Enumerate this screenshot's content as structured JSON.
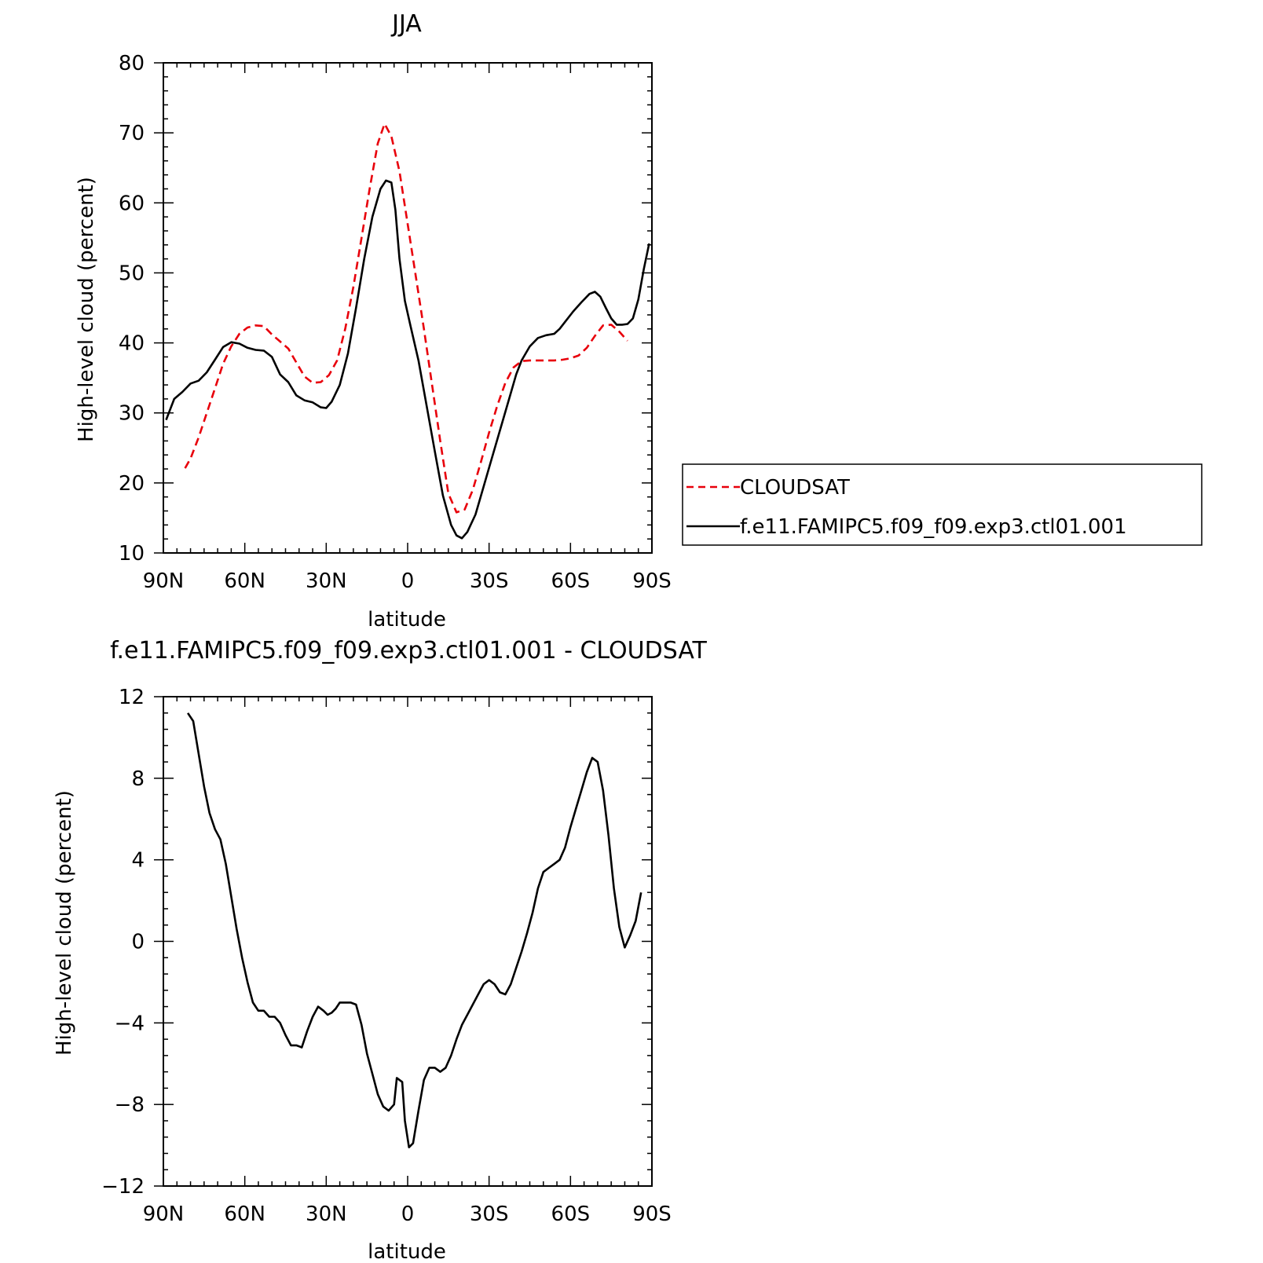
{
  "chart_data": [
    {
      "type": "line",
      "title": "JJA",
      "xlabel": "latitude",
      "ylabel": "High-level cloud (percent)",
      "xlim": [
        90,
        -90
      ],
      "ylim": [
        10,
        80
      ],
      "x_ticks": [
        90,
        60,
        30,
        0,
        -30,
        -60,
        -90
      ],
      "x_tick_labels": [
        "90N",
        "60N",
        "30N",
        "0",
        "30S",
        "60S",
        "90S"
      ],
      "y_ticks": [
        10,
        20,
        30,
        40,
        50,
        60,
        70,
        80
      ],
      "y_tick_labels": [
        "10",
        "20",
        "30",
        "40",
        "50",
        "60",
        "70",
        "80"
      ],
      "legend_position": "right",
      "series": [
        {
          "name": "CLOUDSAT",
          "color": "#e8000b",
          "dash": "dashed",
          "points": [
            [
              82,
              22.1
            ],
            [
              80,
              23.5
            ],
            [
              77,
              26.5
            ],
            [
              74,
              30
            ],
            [
              71,
              33.5
            ],
            [
              68,
              37
            ],
            [
              65,
              39.5
            ],
            [
              62,
              41.3
            ],
            [
              59,
              42.2
            ],
            [
              56,
              42.5
            ],
            [
              53,
              42.4
            ],
            [
              50,
              41.2
            ],
            [
              47,
              40.2
            ],
            [
              44,
              39.2
            ],
            [
              41,
              37.2
            ],
            [
              38,
              35.2
            ],
            [
              35,
              34.3
            ],
            [
              32,
              34.4
            ],
            [
              29,
              35.4
            ],
            [
              26,
              37.5
            ],
            [
              23,
              42
            ],
            [
              20,
              48
            ],
            [
              17,
              55
            ],
            [
              14,
              62
            ],
            [
              11,
              68.5
            ],
            [
              8.5,
              71.3
            ],
            [
              6,
              69.5
            ],
            [
              3,
              64.5
            ],
            [
              0,
              57
            ],
            [
              -3,
              49.5
            ],
            [
              -6,
              42
            ],
            [
              -9,
              34
            ],
            [
              -12,
              26
            ],
            [
              -15,
              18.5
            ],
            [
              -18,
              15.8
            ],
            [
              -21,
              16.2
            ],
            [
              -24,
              19
            ],
            [
              -27,
              23
            ],
            [
              -30,
              27.2
            ],
            [
              -33,
              31
            ],
            [
              -36,
              34.3
            ],
            [
              -39,
              36.5
            ],
            [
              -42,
              37.4
            ],
            [
              -45,
              37.5
            ],
            [
              -48,
              37.5
            ],
            [
              -51,
              37.5
            ],
            [
              -54,
              37.5
            ],
            [
              -57,
              37.6
            ],
            [
              -60,
              37.8
            ],
            [
              -63,
              38.2
            ],
            [
              -66,
              39.3
            ],
            [
              -69,
              41
            ],
            [
              -72,
              42.5
            ],
            [
              -75,
              42.6
            ],
            [
              -78,
              41.6
            ],
            [
              -81,
              40.3
            ]
          ]
        },
        {
          "name": "f.e11.FAMIPC5.f09_f09.exp3.ctl01.001",
          "color": "#000000",
          "dash": "solid",
          "points": [
            [
              89,
              29
            ],
            [
              86,
              32
            ],
            [
              83,
              33
            ],
            [
              80,
              34.2
            ],
            [
              77,
              34.6
            ],
            [
              74,
              35.8
            ],
            [
              71,
              37.6
            ],
            [
              68,
              39.4
            ],
            [
              65,
              40.1
            ],
            [
              62,
              39.9
            ],
            [
              59,
              39.3
            ],
            [
              56,
              39
            ],
            [
              53,
              38.9
            ],
            [
              50,
              38
            ],
            [
              47,
              35.5
            ],
            [
              44,
              34.4
            ],
            [
              41,
              32.5
            ],
            [
              38,
              31.8
            ],
            [
              35,
              31.5
            ],
            [
              32,
              30.8
            ],
            [
              30,
              30.7
            ],
            [
              28,
              31.6
            ],
            [
              25,
              34
            ],
            [
              22,
              38.5
            ],
            [
              19,
              45
            ],
            [
              16,
              52
            ],
            [
              13,
              58
            ],
            [
              10,
              62
            ],
            [
              8,
              63.2
            ],
            [
              6,
              62.9
            ],
            [
              4.5,
              59
            ],
            [
              3,
              52
            ],
            [
              1,
              46
            ],
            [
              -1,
              42.5
            ],
            [
              -4,
              37.5
            ],
            [
              -7,
              31
            ],
            [
              -10,
              24.5
            ],
            [
              -13,
              18.2
            ],
            [
              -16,
              14
            ],
            [
              -18,
              12.5
            ],
            [
              -20,
              12.1
            ],
            [
              -22,
              13
            ],
            [
              -25,
              15.5
            ],
            [
              -28,
              19.5
            ],
            [
              -31,
              23.5
            ],
            [
              -34,
              27.5
            ],
            [
              -37,
              31.5
            ],
            [
              -40,
              35.5
            ],
            [
              -42,
              37.5
            ],
            [
              -45,
              39.5
            ],
            [
              -48,
              40.7
            ],
            [
              -51,
              41.1
            ],
            [
              -54,
              41.3
            ],
            [
              -56,
              42
            ],
            [
              -58,
              43
            ],
            [
              -61,
              44.5
            ],
            [
              -64,
              45.8
            ],
            [
              -67,
              47
            ],
            [
              -69,
              47.3
            ],
            [
              -71,
              46.6
            ],
            [
              -73,
              45
            ],
            [
              -75,
              43.5
            ],
            [
              -77,
              42.6
            ],
            [
              -79,
              42.6
            ],
            [
              -81,
              42.7
            ],
            [
              -83,
              43.5
            ],
            [
              -85,
              46.2
            ],
            [
              -87,
              50.5
            ],
            [
              -89,
              54.2
            ]
          ]
        }
      ]
    },
    {
      "type": "line",
      "title": "f.e11.FAMIPC5.f09_f09.exp3.ctl01.001 - CLOUDSAT",
      "xlabel": "latitude",
      "ylabel": "High-level cloud (percent)",
      "xlim": [
        90,
        -90
      ],
      "ylim": [
        -12,
        12
      ],
      "x_ticks": [
        90,
        60,
        30,
        0,
        -30,
        -60,
        -90
      ],
      "x_tick_labels": [
        "90N",
        "60N",
        "30N",
        "0",
        "30S",
        "60S",
        "90S"
      ],
      "y_ticks": [
        -12,
        -8,
        -4,
        0,
        4,
        8,
        12
      ],
      "y_tick_labels": [
        "−12",
        "−8",
        "−4",
        "0",
        "4",
        "8",
        "12"
      ],
      "series": [
        {
          "color": "#000000",
          "dash": "solid",
          "points": [
            [
              81,
              11.2
            ],
            [
              79,
              10.8
            ],
            [
              77,
              9.2
            ],
            [
              75,
              7.6
            ],
            [
              73,
              6.3
            ],
            [
              71,
              5.5
            ],
            [
              69,
              5
            ],
            [
              67,
              3.8
            ],
            [
              65,
              2.2
            ],
            [
              63,
              0.6
            ],
            [
              61,
              -0.8
            ],
            [
              59,
              -2
            ],
            [
              57,
              -3
            ],
            [
              55,
              -3.4
            ],
            [
              53,
              -3.4
            ],
            [
              51,
              -3.7
            ],
            [
              49,
              -3.7
            ],
            [
              47,
              -4
            ],
            [
              45,
              -4.6
            ],
            [
              43,
              -5.1
            ],
            [
              41,
              -5.1
            ],
            [
              39,
              -5.2
            ],
            [
              37,
              -4.4
            ],
            [
              35,
              -3.7
            ],
            [
              33,
              -3.2
            ],
            [
              31,
              -3.4
            ],
            [
              29.5,
              -3.6
            ],
            [
              28,
              -3.5
            ],
            [
              26.5,
              -3.3
            ],
            [
              25,
              -3
            ],
            [
              23,
              -3
            ],
            [
              21,
              -3
            ],
            [
              19,
              -3.1
            ],
            [
              17,
              -4.1
            ],
            [
              15,
              -5.5
            ],
            [
              13,
              -6.5
            ],
            [
              11,
              -7.5
            ],
            [
              9,
              -8.1
            ],
            [
              7,
              -8.3
            ],
            [
              5,
              -8
            ],
            [
              4,
              -6.7
            ],
            [
              2,
              -6.9
            ],
            [
              1,
              -8.8
            ],
            [
              -0.5,
              -10.1
            ],
            [
              -2,
              -9.9
            ],
            [
              -4,
              -8.3
            ],
            [
              -6,
              -6.8
            ],
            [
              -8,
              -6.2
            ],
            [
              -10,
              -6.2
            ],
            [
              -12,
              -6.4
            ],
            [
              -14,
              -6.2
            ],
            [
              -16,
              -5.6
            ],
            [
              -18,
              -4.8
            ],
            [
              -20,
              -4.1
            ],
            [
              -22,
              -3.6
            ],
            [
              -24,
              -3.1
            ],
            [
              -26,
              -2.6
            ],
            [
              -28,
              -2.1
            ],
            [
              -30,
              -1.9
            ],
            [
              -32,
              -2.1
            ],
            [
              -34,
              -2.5
            ],
            [
              -36,
              -2.6
            ],
            [
              -38,
              -2.1
            ],
            [
              -40,
              -1.3
            ],
            [
              -42,
              -0.5
            ],
            [
              -44,
              0.4
            ],
            [
              -46,
              1.4
            ],
            [
              -48,
              2.6
            ],
            [
              -50,
              3.4
            ],
            [
              -52,
              3.6
            ],
            [
              -54,
              3.8
            ],
            [
              -56,
              4
            ],
            [
              -58,
              4.6
            ],
            [
              -60,
              5.6
            ],
            [
              -62,
              6.5
            ],
            [
              -64,
              7.4
            ],
            [
              -66,
              8.3
            ],
            [
              -68,
              9
            ],
            [
              -70,
              8.8
            ],
            [
              -72,
              7.4
            ],
            [
              -74,
              5.2
            ],
            [
              -76,
              2.6
            ],
            [
              -78,
              0.7
            ],
            [
              -80,
              -0.3
            ],
            [
              -82,
              0.3
            ],
            [
              -84,
              1
            ],
            [
              -86,
              2.4
            ]
          ]
        }
      ]
    }
  ]
}
